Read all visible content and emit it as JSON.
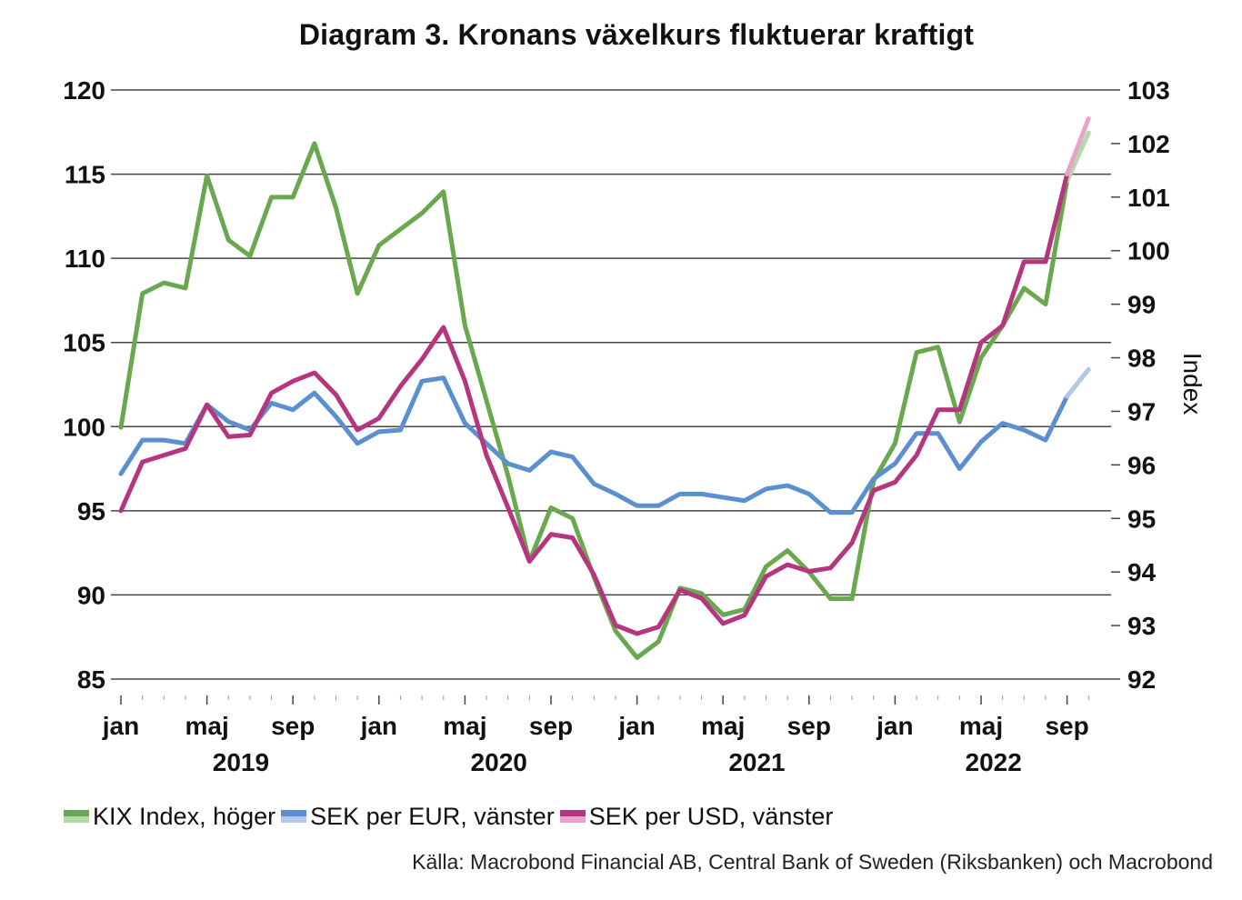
{
  "chart_data": {
    "type": "line",
    "title": "Diagram 3. Kronans växelkurs fluktuerar kraftigt",
    "y_left": {
      "ylim": [
        85,
        120
      ],
      "ticks": [
        "85",
        "90",
        "95",
        "100",
        "105",
        "110",
        "115",
        "120"
      ]
    },
    "y_right": {
      "label": "Index",
      "ylim": [
        92,
        103
      ],
      "ticks": [
        "92",
        "93",
        "94",
        "95",
        "96",
        "97",
        "98",
        "99",
        "100",
        "101",
        "102",
        "103"
      ]
    },
    "x_range": [
      "2019-01",
      "2022-10"
    ],
    "x_month_labels": [
      {
        "month": "2019-01",
        "label": "jan"
      },
      {
        "month": "2019-05",
        "label": "maj"
      },
      {
        "month": "2019-09",
        "label": "sep"
      },
      {
        "month": "2020-01",
        "label": "jan"
      },
      {
        "month": "2020-05",
        "label": "maj"
      },
      {
        "month": "2020-09",
        "label": "sep"
      },
      {
        "month": "2021-01",
        "label": "jan"
      },
      {
        "month": "2021-05",
        "label": "maj"
      },
      {
        "month": "2021-09",
        "label": "sep"
      },
      {
        "month": "2022-01",
        "label": "jan"
      },
      {
        "month": "2022-05",
        "label": "maj"
      },
      {
        "month": "2022-09",
        "label": "sep"
      }
    ],
    "x_year_labels": [
      {
        "month": "2019-07",
        "label": "2019"
      },
      {
        "month": "2020-07",
        "label": "2020"
      },
      {
        "month": "2021-07",
        "label": "2021"
      },
      {
        "month": "2022-06",
        "label": "2022"
      }
    ],
    "grid": true,
    "legend_position": "bottom",
    "x": [
      "2019-01",
      "2019-02",
      "2019-03",
      "2019-04",
      "2019-05",
      "2019-06",
      "2019-07",
      "2019-08",
      "2019-09",
      "2019-10",
      "2019-11",
      "2019-12",
      "2020-01",
      "2020-02",
      "2020-03",
      "2020-04",
      "2020-05",
      "2020-06",
      "2020-07",
      "2020-08",
      "2020-09",
      "2020-10",
      "2020-11",
      "2020-12",
      "2021-01",
      "2021-02",
      "2021-03",
      "2021-04",
      "2021-05",
      "2021-06",
      "2021-07",
      "2021-08",
      "2021-09",
      "2021-10",
      "2021-11",
      "2021-12",
      "2022-01",
      "2022-02",
      "2022-03",
      "2022-04",
      "2022-05",
      "2022-06",
      "2022-07",
      "2022-08",
      "2022-09",
      "2022-10"
    ],
    "series": [
      {
        "name": "KIX Index, höger",
        "axis": "right",
        "color": "#6aa84f",
        "color_light": "#b6d7a8",
        "values": [
          96.7,
          99.2,
          99.4,
          99.3,
          101.4,
          100.2,
          99.9,
          101.0,
          101.0,
          102.0,
          100.8,
          99.2,
          100.1,
          100.4,
          100.7,
          101.1,
          98.6,
          97.2,
          95.8,
          94.2,
          95.2,
          95.0,
          93.9,
          92.9,
          92.4,
          92.7,
          93.7,
          93.6,
          93.2,
          93.3,
          94.1,
          94.4,
          94.0,
          93.5,
          93.5,
          95.7,
          96.4,
          98.1,
          98.2,
          96.8,
          98.0,
          98.6,
          99.3,
          99.0,
          101.3,
          102.2
        ],
        "projected_from": "2022-09"
      },
      {
        "name": "SEK per EUR, vänster",
        "axis": "left",
        "color": "#5b8fd0",
        "color_light": "#b4c7e7",
        "values": [
          97.2,
          99.2,
          99.2,
          99.0,
          101.3,
          100.3,
          99.8,
          101.4,
          101.0,
          102.0,
          100.6,
          99.0,
          99.7,
          99.8,
          102.7,
          102.9,
          100.2,
          99.0,
          97.8,
          97.4,
          98.5,
          98.2,
          96.6,
          96.0,
          95.3,
          95.3,
          96.0,
          96.0,
          95.8,
          95.6,
          96.3,
          96.5,
          96.0,
          94.9,
          94.9,
          96.9,
          97.8,
          99.6,
          99.6,
          97.5,
          99.1,
          100.2,
          99.8,
          99.2,
          101.8,
          103.4
        ],
        "projected_from": "2022-09"
      },
      {
        "name": "SEK per USD, vänster",
        "axis": "left",
        "color": "#b5357f",
        "color_light": "#e8a3c9",
        "values": [
          95.0,
          97.9,
          98.3,
          98.7,
          101.3,
          99.4,
          99.5,
          102.0,
          102.7,
          103.2,
          101.9,
          99.8,
          100.5,
          102.4,
          104.0,
          105.9,
          102.7,
          98.3,
          95.2,
          92.0,
          93.6,
          93.4,
          91.2,
          88.2,
          87.7,
          88.1,
          90.3,
          89.8,
          88.3,
          88.8,
          91.1,
          91.8,
          91.4,
          91.6,
          93.1,
          96.2,
          96.7,
          98.3,
          101.0,
          101.0,
          105.0,
          106.0,
          109.8,
          109.8,
          115.0,
          118.3
        ],
        "projected_from": "2022-09"
      }
    ],
    "source": "Källa: Macrobond Financial AB, Central Bank of Sweden (Riksbanken) och Macrobond"
  }
}
